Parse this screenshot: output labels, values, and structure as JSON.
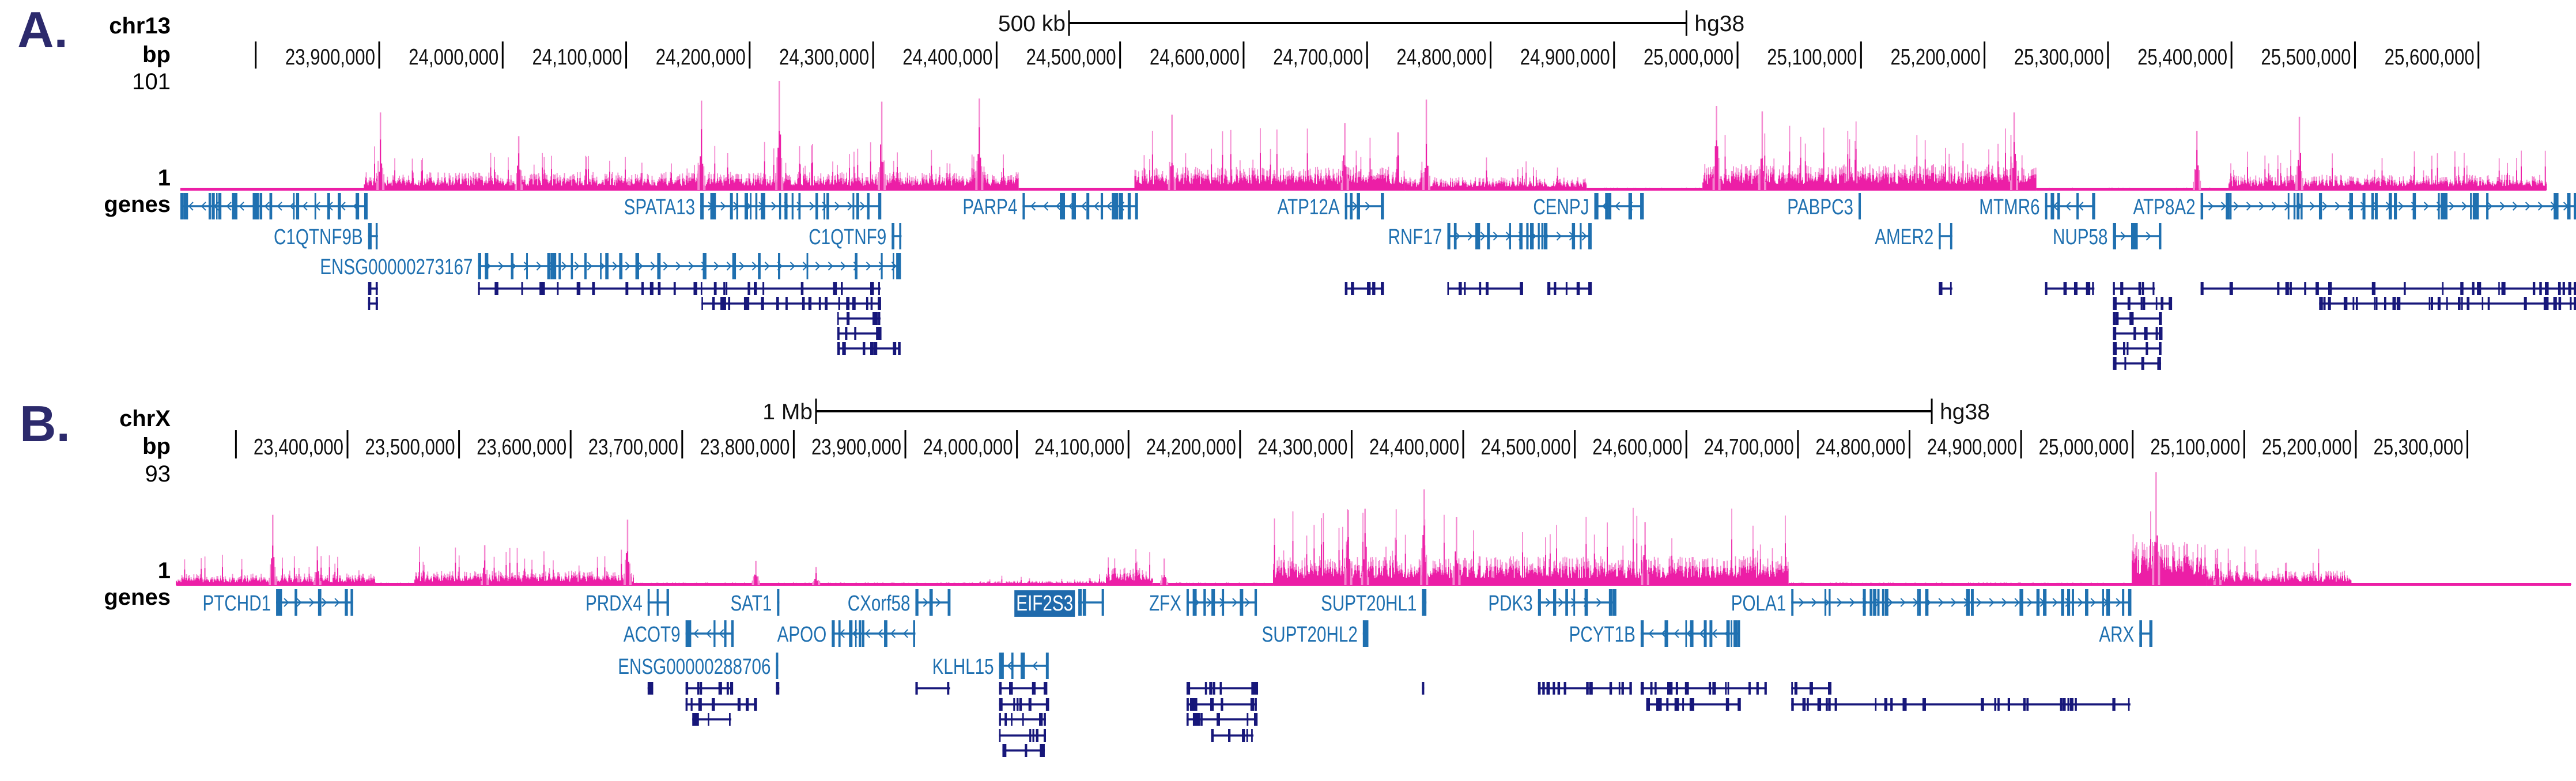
{
  "colors": {
    "signal_dark": "#ec1ea6",
    "signal_light": "#f48ad0",
    "gene_blue": "#1f70b0",
    "transcript_navy": "#17177a",
    "panel_letter": "#2c2a6c",
    "highlight_bg": "#1f6aac",
    "highlight_text": "#ffffff"
  },
  "panels": [
    {
      "letter": "A.",
      "chrom": "chr13",
      "bp_label": "bp",
      "track_max_label": "101",
      "track_min_label": "1",
      "track_max": 101,
      "genes_label": "genes",
      "assembly": "hg38",
      "scale_bar": {
        "label": "500 kb",
        "length_bp": 500000
      },
      "view": {
        "start": 23739000,
        "end": 25679000
      },
      "unlabeled_ticks": [
        23800000
      ],
      "ticks": [
        "23,900,000",
        "24,000,000",
        "24,100,000",
        "24,200,000",
        "24,300,000",
        "24,400,000",
        "24,500,000",
        "24,600,000",
        "24,700,000",
        "24,800,000",
        "24,900,000",
        "25,000,000",
        "25,100,000",
        "25,200,000",
        "25,300,000",
        "25,400,000",
        "25,500,000",
        "25,600,000"
      ],
      "signal_regions": [
        {
          "start": 23739000,
          "end": 23888000,
          "level": 1.5
        },
        {
          "start": 23888000,
          "end": 24418000,
          "level": 14
        },
        {
          "start": 24418000,
          "end": 24512000,
          "level": 1.5
        },
        {
          "start": 24512000,
          "end": 24731000,
          "level": 18
        },
        {
          "start": 24731000,
          "end": 24878000,
          "level": 10
        },
        {
          "start": 24878000,
          "end": 24972000,
          "level": 2
        },
        {
          "start": 24972000,
          "end": 25242000,
          "level": 20
        },
        {
          "start": 25242000,
          "end": 25398000,
          "level": 2
        },
        {
          "start": 25398000,
          "end": 25655000,
          "level": 12
        }
      ],
      "signal_peaks": [
        {
          "pos": 23901000,
          "value": 72
        },
        {
          "pos": 24013000,
          "value": 50
        },
        {
          "pos": 24161000,
          "value": 83
        },
        {
          "pos": 24224000,
          "value": 101
        },
        {
          "pos": 24307000,
          "value": 82
        },
        {
          "pos": 24386000,
          "value": 85
        },
        {
          "pos": 24542000,
          "value": 70
        },
        {
          "pos": 24682000,
          "value": 62
        },
        {
          "pos": 24748000,
          "value": 84
        },
        {
          "pos": 24983000,
          "value": 78
        },
        {
          "pos": 25020000,
          "value": 73
        },
        {
          "pos": 25224000,
          "value": 72
        },
        {
          "pos": 25372000,
          "value": 55
        },
        {
          "pos": 25455000,
          "value": 68
        }
      ],
      "genes": [
        {
          "name": "",
          "start": 23739000,
          "end": 23890000,
          "strand": "-",
          "row": 1
        },
        {
          "name": "SPATA13",
          "start": 24160000,
          "end": 24306000,
          "strand": "+",
          "row": 1
        },
        {
          "name": "PARP4",
          "start": 24421000,
          "end": 24514000,
          "strand": "-",
          "row": 1
        },
        {
          "name": "ATP12A",
          "start": 24682000,
          "end": 24713000,
          "strand": "+",
          "row": 1
        },
        {
          "name": "CENPJ",
          "start": 24884000,
          "end": 24923000,
          "strand": "-",
          "row": 1
        },
        {
          "name": "PABPC3",
          "start": 25098000,
          "end": 25099000,
          "strand": "",
          "row": 1
        },
        {
          "name": "MTMR6",
          "start": 25249000,
          "end": 25289000,
          "strand": "-",
          "row": 1
        },
        {
          "name": "ATP8A2",
          "start": 25375000,
          "end": 25679000,
          "strand": "+",
          "row": 1
        },
        {
          "name": "C1QTNF9B",
          "start": 23891000,
          "end": 23899000,
          "strand": "",
          "row": 2
        },
        {
          "name": "C1QTNF9",
          "start": 24315000,
          "end": 24323000,
          "strand": "",
          "row": 2
        },
        {
          "name": "RNF17",
          "start": 24765000,
          "end": 24881000,
          "strand": "+",
          "row": 2
        },
        {
          "name": "AMER2",
          "start": 25163000,
          "end": 25174000,
          "strand": "",
          "row": 2
        },
        {
          "name": "NUP58",
          "start": 25304000,
          "end": 25343000,
          "strand": "+",
          "row": 2
        },
        {
          "name": "ENSG00000273167",
          "start": 23980000,
          "end": 24322000,
          "strand": "+",
          "row": 3
        }
      ],
      "transcripts": [
        {
          "row": 4,
          "start": 23891000,
          "end": 23899000
        },
        {
          "row": 4,
          "start": 23980000,
          "end": 24306000
        },
        {
          "row": 4,
          "start": 24682000,
          "end": 24713000
        },
        {
          "row": 4,
          "start": 24765000,
          "end": 24826000
        },
        {
          "row": 4,
          "start": 24846000,
          "end": 24881000
        },
        {
          "row": 4,
          "start": 25163000,
          "end": 25174000
        },
        {
          "row": 4,
          "start": 25249000,
          "end": 25289000
        },
        {
          "row": 4,
          "start": 25304000,
          "end": 25338000
        },
        {
          "row": 4,
          "start": 25375000,
          "end": 25679000
        },
        {
          "row": 5,
          "start": 23891000,
          "end": 23899000
        },
        {
          "row": 5,
          "start": 24161000,
          "end": 24306000
        },
        {
          "row": 5,
          "start": 25304000,
          "end": 25351000
        },
        {
          "row": 5,
          "start": 25471000,
          "end": 25679000
        },
        {
          "row": 6,
          "start": 24271000,
          "end": 24306000
        },
        {
          "row": 6,
          "start": 25304000,
          "end": 25343000
        },
        {
          "row": 7,
          "start": 24271000,
          "end": 24306000
        },
        {
          "row": 7,
          "start": 25304000,
          "end": 25343000
        },
        {
          "row": 8,
          "start": 24271000,
          "end": 24322000
        },
        {
          "row": 8,
          "start": 25304000,
          "end": 25343000
        },
        {
          "row": 9,
          "start": 25304000,
          "end": 25343000
        }
      ]
    },
    {
      "letter": "B.",
      "chrom": "chrX",
      "bp_label": "bp",
      "track_max_label": "93",
      "track_min_label": "1",
      "track_max": 93,
      "genes_label": "genes",
      "assembly": "hg38",
      "scale_bar": {
        "label": "1 Mb",
        "length_bp": 1000000
      },
      "view": {
        "start": 23246600,
        "end": 25392700
      },
      "unlabeled_ticks": [
        23300000
      ],
      "ticks": [
        "23,400,000",
        "23,500,000",
        "23,600,000",
        "23,700,000",
        "23,800,000",
        "23,900,000",
        "24,000,000",
        "24,100,000",
        "24,200,000",
        "24,300,000",
        "24,400,000",
        "24,500,000",
        "24,600,000",
        "24,700,000",
        "24,800,000",
        "24,900,000",
        "25,000,000",
        "25,100,000",
        "25,200,000",
        "25,300,000"
      ],
      "signal_regions": [
        {
          "start": 23246600,
          "end": 23424300,
          "level": 8
        },
        {
          "start": 23424300,
          "end": 23460400,
          "level": 2
        },
        {
          "start": 23460400,
          "end": 23656700,
          "level": 10
        },
        {
          "start": 23656700,
          "end": 23966600,
          "level": 2
        },
        {
          "start": 23966600,
          "end": 24080200,
          "level": 3
        },
        {
          "start": 24080200,
          "end": 24121600,
          "level": 12
        },
        {
          "start": 24121600,
          "end": 24230000,
          "level": 2
        },
        {
          "start": 24230000,
          "end": 24691800,
          "level": 20
        },
        {
          "start": 24691800,
          "end": 24999600,
          "level": 2
        },
        {
          "start": 24999600,
          "end": 25066700,
          "level": 30
        },
        {
          "start": 25066700,
          "end": 25195900,
          "level": 10
        },
        {
          "start": 25195900,
          "end": 25392700,
          "level": 1.5
        }
      ],
      "signal_peaks": [
        {
          "pos": 23333000,
          "value": 58
        },
        {
          "pos": 23373000,
          "value": 32
        },
        {
          "pos": 23523000,
          "value": 33
        },
        {
          "pos": 23651000,
          "value": 54
        },
        {
          "pos": 23766000,
          "value": 20
        },
        {
          "pos": 23820000,
          "value": 15
        },
        {
          "pos": 24132000,
          "value": 22
        },
        {
          "pos": 24297000,
          "value": 62
        },
        {
          "pos": 24312000,
          "value": 63
        },
        {
          "pos": 24365000,
          "value": 79
        },
        {
          "pos": 24394000,
          "value": 56
        },
        {
          "pos": 24563000,
          "value": 52
        },
        {
          "pos": 25021000,
          "value": 93
        },
        {
          "pos": 25076000,
          "value": 30
        }
      ],
      "genes": [
        {
          "name": "PTCHD1",
          "start": 23336000,
          "end": 23405000,
          "strand": "+",
          "row": 1
        },
        {
          "name": "PRDX4",
          "start": 23669000,
          "end": 23688000,
          "strand": "+",
          "row": 1
        },
        {
          "name": "SAT1",
          "start": 23785000,
          "end": 23787000,
          "strand": "",
          "row": 1
        },
        {
          "name": "CXorf58",
          "start": 23909000,
          "end": 23940000,
          "strand": "+",
          "row": 1
        },
        {
          "name": "EIF2S3",
          "start": 24055000,
          "end": 24078000,
          "strand": "",
          "row": 1,
          "highlight": true
        },
        {
          "name": "ZFX",
          "start": 24152000,
          "end": 24215000,
          "strand": "+",
          "row": 1
        },
        {
          "name": "SUPT20HL1",
          "start": 24363000,
          "end": 24367000,
          "strand": "",
          "row": 1
        },
        {
          "name": "PDK3",
          "start": 24467000,
          "end": 24536000,
          "strand": "+",
          "row": 1
        },
        {
          "name": "POLA1",
          "start": 24694000,
          "end": 24998000,
          "strand": "+",
          "row": 1
        },
        {
          "name": "ACOT9",
          "start": 23703000,
          "end": 23746000,
          "strand": "-",
          "row": 2
        },
        {
          "name": "APOO",
          "start": 23834000,
          "end": 23909000,
          "strand": "-",
          "row": 2
        },
        {
          "name": "SUPT20HL2",
          "start": 24310000,
          "end": 24315000,
          "strand": "",
          "row": 2
        },
        {
          "name": "PCYT1B",
          "start": 24559000,
          "end": 24648000,
          "strand": "-",
          "row": 2
        },
        {
          "name": "ARX",
          "start": 25006000,
          "end": 25017000,
          "strand": "",
          "row": 2
        },
        {
          "name": "ENSG00000288706",
          "start": 23784000,
          "end": 23785000,
          "strand": "",
          "row": 3
        },
        {
          "name": "KLHL15",
          "start": 23984000,
          "end": 24028000,
          "strand": "-",
          "row": 3
        }
      ],
      "transcripts": [
        {
          "row": 4,
          "start": 23669000,
          "end": 23674000
        },
        {
          "row": 4,
          "start": 23703000,
          "end": 23745000
        },
        {
          "row": 4,
          "start": 23784000,
          "end": 23787000
        },
        {
          "row": 4,
          "start": 23909000,
          "end": 23940000
        },
        {
          "row": 4,
          "start": 23984000,
          "end": 24026000
        },
        {
          "row": 4,
          "start": 24152000,
          "end": 24215000
        },
        {
          "row": 4,
          "start": 24363000,
          "end": 24365000
        },
        {
          "row": 4,
          "start": 24467000,
          "end": 24551000
        },
        {
          "row": 4,
          "start": 24559000,
          "end": 24672000
        },
        {
          "row": 4,
          "start": 24694000,
          "end": 24729000
        },
        {
          "row": 5,
          "start": 23703000,
          "end": 23767000
        },
        {
          "row": 5,
          "start": 23984000,
          "end": 24028000
        },
        {
          "row": 5,
          "start": 24152000,
          "end": 24215000
        },
        {
          "row": 5,
          "start": 24564000,
          "end": 24648000
        },
        {
          "row": 5,
          "start": 24694000,
          "end": 24998000
        },
        {
          "row": 6,
          "start": 23709000,
          "end": 23744000
        },
        {
          "row": 6,
          "start": 23984000,
          "end": 24026000
        },
        {
          "row": 6,
          "start": 24152000,
          "end": 24215000
        },
        {
          "row": 7,
          "start": 23984000,
          "end": 24026000
        },
        {
          "row": 7,
          "start": 24174000,
          "end": 24212000
        },
        {
          "row": 8,
          "start": 23987000,
          "end": 24025000
        }
      ]
    }
  ]
}
